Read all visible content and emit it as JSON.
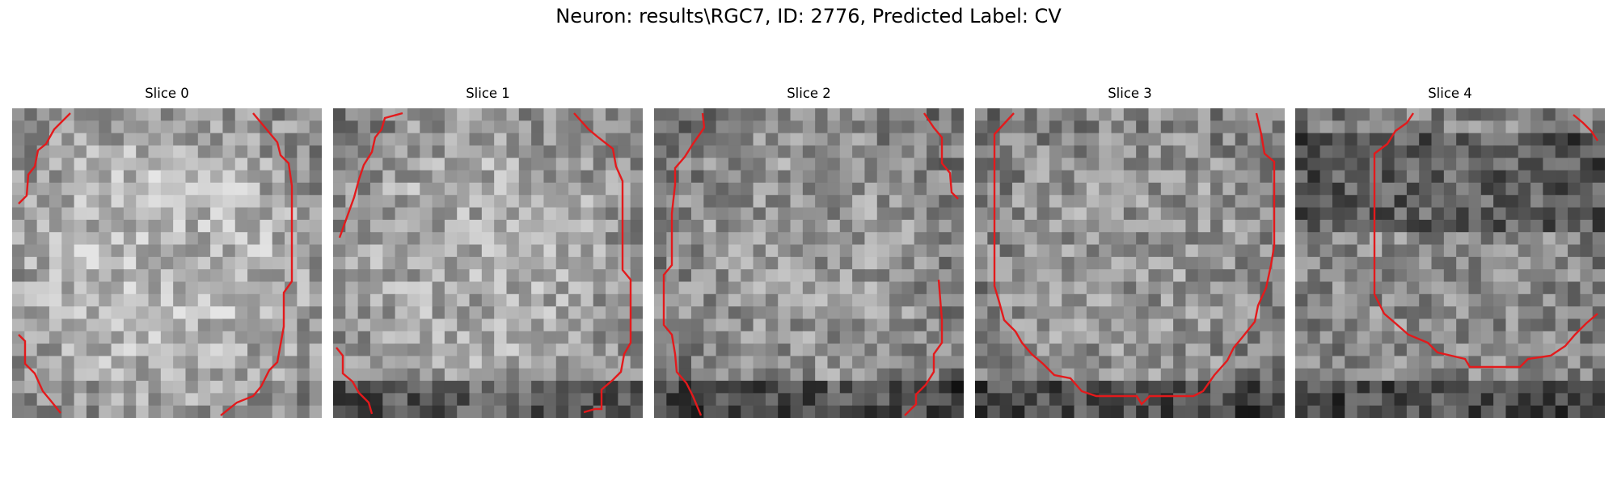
{
  "figure": {
    "title": "Neuron: results\\RGC7, ID: 2776, Predicted Label: CV"
  },
  "slices": [
    {
      "title": "Slice 0"
    },
    {
      "title": "Slice 1"
    },
    {
      "title": "Slice 2"
    },
    {
      "title": "Slice 3"
    },
    {
      "title": "Slice 4"
    }
  ],
  "contour_color": "#e31a1c"
}
